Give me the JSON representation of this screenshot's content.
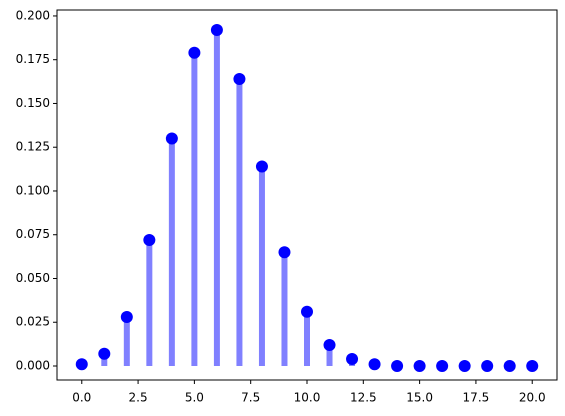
{
  "chart_data": {
    "type": "stem",
    "x": [
      0,
      1,
      2,
      3,
      4,
      5,
      6,
      7,
      8,
      9,
      10,
      11,
      12,
      13,
      14,
      15,
      16,
      17,
      18,
      19,
      20
    ],
    "values": [
      0.001,
      0.007,
      0.028,
      0.072,
      0.13,
      0.179,
      0.192,
      0.164,
      0.114,
      0.065,
      0.031,
      0.012,
      0.004,
      0.001,
      0.0,
      0,
      0,
      0,
      0,
      0,
      0
    ],
    "line_color": "#8080ff",
    "marker_color": "#0000ff",
    "xlim": [
      -1.1,
      21.1
    ],
    "ylim": [
      -0.008,
      0.2034
    ],
    "xticks": [
      {
        "value": 0,
        "label": "0.0"
      },
      {
        "value": 2.5,
        "label": "2.5"
      },
      {
        "value": 5,
        "label": "5.0"
      },
      {
        "value": 7.5,
        "label": "7.5"
      },
      {
        "value": 10,
        "label": "10.0"
      },
      {
        "value": 12.5,
        "label": "12.5"
      },
      {
        "value": 15,
        "label": "15.0"
      },
      {
        "value": 17.5,
        "label": "17.5"
      },
      {
        "value": 20,
        "label": "20.0"
      }
    ],
    "yticks": [
      {
        "value": 0,
        "label": "0.000"
      },
      {
        "value": 0.025,
        "label": "0.025"
      },
      {
        "value": 0.05,
        "label": "0.050"
      },
      {
        "value": 0.075,
        "label": "0.075"
      },
      {
        "value": 0.1,
        "label": "0.100"
      },
      {
        "value": 0.125,
        "label": "0.125"
      },
      {
        "value": 0.15,
        "label": "0.150"
      },
      {
        "value": 0.175,
        "label": "0.175"
      },
      {
        "value": 0.2,
        "label": "0.200"
      }
    ],
    "grid": false
  }
}
